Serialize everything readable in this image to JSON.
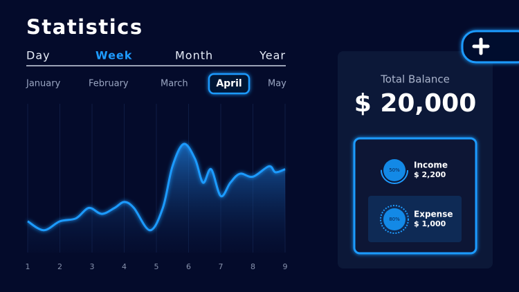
{
  "header": {
    "title": "Statistics"
  },
  "tabs": [
    "Day",
    "Week",
    "Month",
    "Year"
  ],
  "months": [
    "January",
    "February",
    "March",
    "April",
    "May"
  ],
  "chart_data": {
    "type": "line",
    "x": [
      1,
      1.5,
      2,
      2.5,
      2.9,
      3.3,
      3.7,
      4,
      4.3,
      4.8,
      5.2,
      5.5,
      5.85,
      6.2,
      6.45,
      6.7,
      7,
      7.3,
      7.6,
      8,
      8.5,
      8.7,
      9
    ],
    "series": [
      {
        "color": "#1e9bff",
        "values": [
          21,
          15,
          21,
          23,
          30,
          26,
          30,
          34,
          30,
          15,
          30,
          58,
          73,
          63,
          47,
          56,
          38,
          47,
          53,
          51,
          58,
          54,
          56
        ]
      }
    ],
    "xlim": [
      1,
      9
    ],
    "xticks": [
      1,
      2,
      3,
      4,
      5,
      6,
      7,
      8,
      9
    ],
    "ylim": [
      0,
      100
    ]
  },
  "balance": {
    "label": "Total Balance",
    "amount": "$ 20,000"
  },
  "income": {
    "percent": "50%",
    "label": "Income",
    "amount": "$ 2,200"
  },
  "expense": {
    "percent": "80%",
    "label": "Expense",
    "amount": "$ 1,000"
  }
}
